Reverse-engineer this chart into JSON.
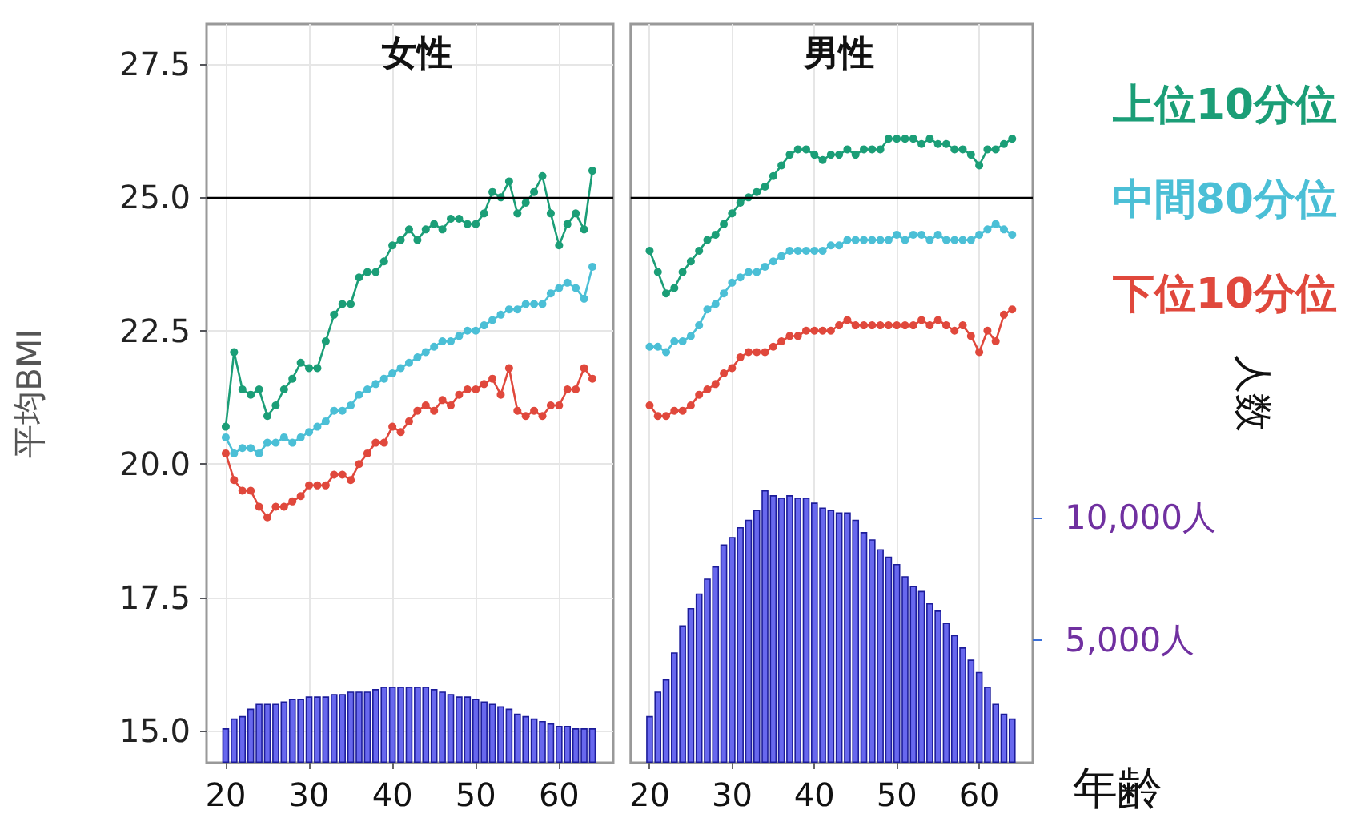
{
  "chart_data": [
    {
      "type": "line",
      "title": "女性",
      "ylabel": "平均BMI",
      "x": [
        20,
        21,
        22,
        23,
        24,
        25,
        26,
        27,
        28,
        29,
        30,
        31,
        32,
        33,
        34,
        35,
        36,
        37,
        38,
        39,
        40,
        41,
        42,
        43,
        44,
        45,
        46,
        47,
        48,
        49,
        50,
        51,
        52,
        53,
        54,
        55,
        56,
        57,
        58,
        59,
        60,
        61,
        62,
        63,
        64
      ],
      "xlim": [
        17.7,
        66.5
      ],
      "xticks": [
        20,
        30,
        40,
        50,
        60
      ],
      "ylim": [
        14.4,
        28.25
      ],
      "yticks": [
        {
          "value": 15,
          "label": "15.0"
        },
        {
          "value": 17.5,
          "label": "17.5"
        },
        {
          "value": 20,
          "label": "20.0"
        },
        {
          "value": 22.5,
          "label": "22.5"
        },
        {
          "value": 25,
          "label": "25.0"
        },
        {
          "value": 27.5,
          "label": "27.5"
        }
      ],
      "y2lim": [
        0,
        30100
      ],
      "tick_labels": [
        "x",
        "y"
      ],
      "grid": true,
      "legend": false,
      "marker": "circle",
      "line_style": "solid",
      "series": [
        {
          "color": "#1b9e77",
          "values": [
            20.7,
            22.1,
            21.4,
            21.3,
            21.4,
            20.9,
            21.1,
            21.4,
            21.6,
            21.9,
            21.8,
            21.8,
            22.3,
            22.8,
            23.0,
            23.0,
            23.5,
            23.6,
            23.6,
            23.8,
            24.1,
            24.2,
            24.4,
            24.2,
            24.4,
            24.5,
            24.4,
            24.6,
            24.6,
            24.5,
            24.5,
            24.7,
            25.1,
            25.0,
            25.3,
            24.7,
            24.9,
            25.1,
            25.4,
            24.7,
            24.1,
            24.5,
            24.7,
            24.4,
            25.5
          ]
        },
        {
          "color": "#4bbfd6",
          "values": [
            20.5,
            20.2,
            20.3,
            20.3,
            20.2,
            20.4,
            20.4,
            20.5,
            20.4,
            20.5,
            20.6,
            20.7,
            20.8,
            21.0,
            21.0,
            21.1,
            21.3,
            21.4,
            21.5,
            21.6,
            21.7,
            21.8,
            21.9,
            22.0,
            22.1,
            22.2,
            22.3,
            22.3,
            22.4,
            22.5,
            22.5,
            22.6,
            22.7,
            22.8,
            22.9,
            22.9,
            23.0,
            23.0,
            23.0,
            23.2,
            23.3,
            23.4,
            23.3,
            23.1,
            23.7
          ]
        },
        {
          "color": "#e0483c",
          "values": [
            20.2,
            19.7,
            19.5,
            19.5,
            19.2,
            19.0,
            19.2,
            19.2,
            19.3,
            19.4,
            19.6,
            19.6,
            19.6,
            19.8,
            19.8,
            19.7,
            20.0,
            20.2,
            20.4,
            20.4,
            20.7,
            20.6,
            20.8,
            21.0,
            21.1,
            21.0,
            21.2,
            21.1,
            21.3,
            21.4,
            21.4,
            21.5,
            21.6,
            21.3,
            21.8,
            21.0,
            20.9,
            21.0,
            20.9,
            21.1,
            21.1,
            21.4,
            21.4,
            21.8,
            21.6
          ]
        },
        {
          "type": "bar",
          "axis": "y2",
          "color": "#6868ee",
          "values": [
            1400,
            1800,
            1900,
            2200,
            2400,
            2400,
            2400,
            2500,
            2600,
            2600,
            2700,
            2700,
            2700,
            2800,
            2800,
            2900,
            2900,
            2900,
            3000,
            3100,
            3100,
            3100,
            3100,
            3100,
            3100,
            3000,
            2900,
            2800,
            2700,
            2700,
            2600,
            2500,
            2400,
            2300,
            2200,
            2000,
            1900,
            1800,
            1700,
            1600,
            1500,
            1500,
            1400,
            1400,
            1400
          ]
        }
      ],
      "ref_lines": [
        {
          "axis": "y",
          "value": 25,
          "color": "#000000"
        }
      ]
    },
    {
      "type": "line",
      "title": "男性",
      "xlabel": "年齢",
      "y2label": "人数",
      "x": [
        20,
        21,
        22,
        23,
        24,
        25,
        26,
        27,
        28,
        29,
        30,
        31,
        32,
        33,
        34,
        35,
        36,
        37,
        38,
        39,
        40,
        41,
        42,
        43,
        44,
        45,
        46,
        47,
        48,
        49,
        50,
        51,
        52,
        53,
        54,
        55,
        56,
        57,
        58,
        59,
        60,
        61,
        62,
        63,
        64
      ],
      "xlim": [
        17.7,
        66.5
      ],
      "xticks": [
        20,
        30,
        40,
        50,
        60
      ],
      "ylim": [
        14.4,
        28.25
      ],
      "y2lim": [
        0,
        30100
      ],
      "y2ticks": [
        {
          "value": 5000,
          "label": "5,000人"
        },
        {
          "value": 10000,
          "label": "10,000人"
        }
      ],
      "tick_labels": [
        "x",
        "y2"
      ],
      "grid": "x",
      "legend": "right",
      "marker": "circle",
      "line_style": "solid",
      "series": [
        {
          "name": "上位10分位",
          "color": "#1b9e77",
          "values": [
            24.0,
            23.6,
            23.2,
            23.3,
            23.6,
            23.8,
            24.0,
            24.2,
            24.3,
            24.5,
            24.7,
            24.9,
            25.0,
            25.1,
            25.2,
            25.4,
            25.6,
            25.8,
            25.9,
            25.9,
            25.8,
            25.7,
            25.8,
            25.8,
            25.9,
            25.8,
            25.9,
            25.9,
            25.9,
            26.1,
            26.1,
            26.1,
            26.1,
            26.0,
            26.1,
            26.0,
            26.0,
            25.9,
            25.9,
            25.8,
            25.6,
            25.9,
            25.9,
            26.0,
            26.1
          ]
        },
        {
          "name": "中間80分位",
          "color": "#4bbfd6",
          "values": [
            22.2,
            22.2,
            22.1,
            22.3,
            22.3,
            22.4,
            22.6,
            22.9,
            23.0,
            23.2,
            23.4,
            23.5,
            23.6,
            23.6,
            23.7,
            23.8,
            23.9,
            24.0,
            24.0,
            24.0,
            24.0,
            24.0,
            24.1,
            24.1,
            24.2,
            24.2,
            24.2,
            24.2,
            24.2,
            24.2,
            24.3,
            24.2,
            24.3,
            24.3,
            24.2,
            24.3,
            24.2,
            24.2,
            24.2,
            24.2,
            24.3,
            24.4,
            24.5,
            24.4,
            24.3
          ]
        },
        {
          "name": "下位10分位",
          "color": "#e0483c",
          "values": [
            21.1,
            20.9,
            20.9,
            21.0,
            21.0,
            21.1,
            21.3,
            21.4,
            21.5,
            21.7,
            21.8,
            22.0,
            22.1,
            22.1,
            22.1,
            22.2,
            22.3,
            22.4,
            22.4,
            22.5,
            22.5,
            22.5,
            22.5,
            22.6,
            22.7,
            22.6,
            22.6,
            22.6,
            22.6,
            22.6,
            22.6,
            22.6,
            22.6,
            22.7,
            22.6,
            22.7,
            22.6,
            22.5,
            22.6,
            22.4,
            22.1,
            22.5,
            22.3,
            22.8,
            22.9
          ]
        },
        {
          "type": "bar",
          "axis": "y2",
          "color": "#6868ee",
          "values": [
            1900,
            2900,
            3400,
            4500,
            5600,
            6300,
            6900,
            7500,
            8000,
            8900,
            9200,
            9600,
            9900,
            10300,
            11100,
            10900,
            10800,
            10900,
            10800,
            10800,
            10600,
            10400,
            10300,
            10200,
            10200,
            9900,
            9400,
            9100,
            8700,
            8400,
            8100,
            7600,
            7200,
            7000,
            6500,
            6200,
            5700,
            5200,
            4700,
            4200,
            3700,
            3100,
            2400,
            2000,
            1800
          ]
        }
      ],
      "ref_lines": [
        {
          "axis": "y",
          "value": 25,
          "color": "#000000"
        }
      ]
    }
  ]
}
